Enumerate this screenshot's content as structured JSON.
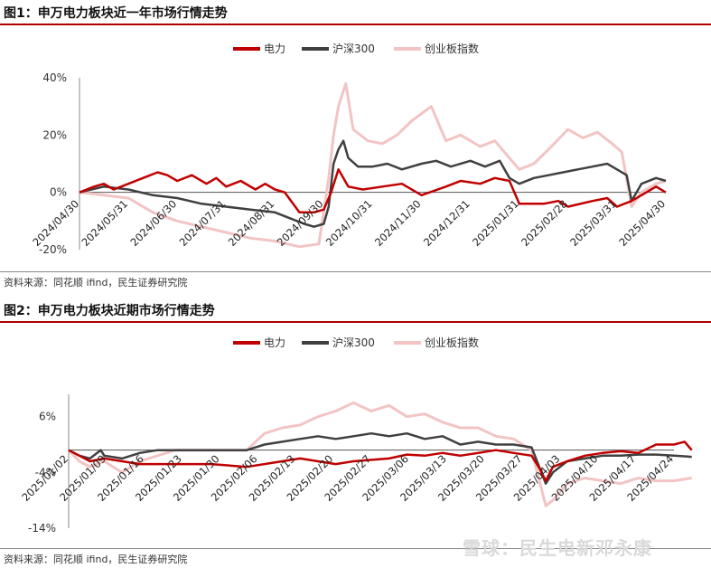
{
  "figures": [
    {
      "title": "图1：申万电力板块近一年市场行情走势",
      "source": "资料来源：同花顺 ifind，民生证券研究院"
    },
    {
      "title": "图2：申万电力板块近期市场行情走势",
      "source": "资料来源：同花顺 ifind，民生证券研究院"
    }
  ],
  "watermark": "雪球：民生电新邓永康",
  "colors": {
    "power": "#c00000",
    "hs300": "#404040",
    "cyb": "#f2c4c4"
  },
  "chart_data": [
    {
      "type": "line",
      "title": "图1：申万电力板块近一年市场行情走势",
      "xlabel": "",
      "ylabel": "",
      "ylim": [
        -20,
        40
      ],
      "y_ticks": [
        -20,
        0,
        20,
        40
      ],
      "y_tick_labels": [
        "-20%",
        "0%",
        "20%",
        "40%"
      ],
      "x_tick_labels": [
        "2024/04/30",
        "2024/05/31",
        "2024/06/30",
        "2024/07/31",
        "2024/08/31",
        "2024/09/30",
        "2024/10/31",
        "2024/11/30",
        "2024/12/31",
        "2025/01/31",
        "2025/02/28",
        "2025/03/31",
        "2025/04/30"
      ],
      "legend_position": "top",
      "x_min": 0,
      "x_max": 12,
      "series": [
        {
          "name": "电力",
          "color": "#c00000",
          "points": [
            [
              0,
              0
            ],
            [
              0.3,
              2
            ],
            [
              0.5,
              3
            ],
            [
              0.7,
              1
            ],
            [
              1,
              3
            ],
            [
              1.3,
              5
            ],
            [
              1.6,
              7
            ],
            [
              1.8,
              6
            ],
            [
              2,
              4
            ],
            [
              2.3,
              6
            ],
            [
              2.6,
              3
            ],
            [
              2.8,
              5
            ],
            [
              3,
              2
            ],
            [
              3.3,
              4
            ],
            [
              3.6,
              1
            ],
            [
              3.8,
              3
            ],
            [
              4,
              1
            ],
            [
              4.2,
              0
            ],
            [
              4.5,
              -7
            ],
            [
              4.8,
              -7
            ],
            [
              5,
              -6
            ],
            [
              5.15,
              0
            ],
            [
              5.3,
              8
            ],
            [
              5.5,
              2
            ],
            [
              5.8,
              1
            ],
            [
              6.2,
              2
            ],
            [
              6.6,
              3
            ],
            [
              7,
              -1
            ],
            [
              7.5,
              2
            ],
            [
              7.8,
              4
            ],
            [
              8.2,
              3
            ],
            [
              8.5,
              5
            ],
            [
              8.8,
              4
            ],
            [
              9,
              -4
            ],
            [
              9.5,
              -4
            ],
            [
              9.8,
              -3
            ],
            [
              10,
              -5
            ],
            [
              10.5,
              -3
            ],
            [
              10.8,
              -2
            ],
            [
              11,
              -5
            ],
            [
              11.3,
              -3
            ],
            [
              11.6,
              0
            ],
            [
              11.8,
              2
            ],
            [
              12,
              0
            ]
          ]
        },
        {
          "name": "沪深300",
          "color": "#404040",
          "points": [
            [
              0,
              0
            ],
            [
              0.5,
              2
            ],
            [
              1,
              1
            ],
            [
              1.5,
              -1
            ],
            [
              2,
              -2
            ],
            [
              2.5,
              -4
            ],
            [
              3,
              -5
            ],
            [
              3.5,
              -6
            ],
            [
              4,
              -7
            ],
            [
              4.3,
              -9
            ],
            [
              4.6,
              -11
            ],
            [
              4.8,
              -12
            ],
            [
              5,
              -11
            ],
            [
              5.1,
              -5
            ],
            [
              5.2,
              10
            ],
            [
              5.3,
              15
            ],
            [
              5.4,
              18
            ],
            [
              5.5,
              12
            ],
            [
              5.7,
              9
            ],
            [
              6,
              9
            ],
            [
              6.3,
              10
            ],
            [
              6.6,
              8
            ],
            [
              7,
              10
            ],
            [
              7.3,
              11
            ],
            [
              7.6,
              9
            ],
            [
              8,
              11
            ],
            [
              8.3,
              9
            ],
            [
              8.6,
              11
            ],
            [
              8.8,
              5
            ],
            [
              9,
              3
            ],
            [
              9.3,
              5
            ],
            [
              9.6,
              6
            ],
            [
              9.9,
              7
            ],
            [
              10.2,
              8
            ],
            [
              10.5,
              9
            ],
            [
              10.8,
              10
            ],
            [
              11,
              8
            ],
            [
              11.2,
              6
            ],
            [
              11.3,
              -3
            ],
            [
              11.5,
              3
            ],
            [
              11.8,
              5
            ],
            [
              12,
              4
            ]
          ]
        },
        {
          "name": "创业板指数",
          "color": "#f2c4c4",
          "points": [
            [
              0,
              0
            ],
            [
              0.5,
              -1
            ],
            [
              1,
              -2
            ],
            [
              1.5,
              -7
            ],
            [
              2,
              -10
            ],
            [
              2.5,
              -12
            ],
            [
              3,
              -14
            ],
            [
              3.5,
              -16
            ],
            [
              4,
              -17
            ],
            [
              4.5,
              -19
            ],
            [
              4.9,
              -18
            ],
            [
              5.1,
              5
            ],
            [
              5.2,
              20
            ],
            [
              5.3,
              30
            ],
            [
              5.45,
              38
            ],
            [
              5.6,
              22
            ],
            [
              5.9,
              18
            ],
            [
              6.2,
              17
            ],
            [
              6.5,
              20
            ],
            [
              6.8,
              25
            ],
            [
              7.2,
              30
            ],
            [
              7.5,
              18
            ],
            [
              7.8,
              20
            ],
            [
              8.2,
              16
            ],
            [
              8.5,
              18
            ],
            [
              8.8,
              12
            ],
            [
              9,
              8
            ],
            [
              9.3,
              10
            ],
            [
              9.6,
              15
            ],
            [
              10,
              22
            ],
            [
              10.3,
              19
            ],
            [
              10.6,
              21
            ],
            [
              10.9,
              17
            ],
            [
              11.1,
              14
            ],
            [
              11.3,
              -5
            ],
            [
              11.5,
              0
            ],
            [
              11.8,
              3
            ],
            [
              12,
              4
            ]
          ]
        }
      ]
    },
    {
      "type": "line",
      "title": "图2：申万电力板块近期市场行情走势",
      "xlabel": "",
      "ylabel": "",
      "ylim": [
        -14,
        10
      ],
      "y_ticks": [
        -14,
        -4,
        6
      ],
      "y_tick_labels": [
        "-14%",
        "-4%",
        "6%"
      ],
      "x_tick_labels": [
        "2025/01/02",
        "2025/01/09",
        "2025/01/16",
        "2025/01/23",
        "2025/01/30",
        "2025/02/06",
        "2025/02/13",
        "2025/02/20",
        "2025/02/27",
        "2025/03/06",
        "2025/03/13",
        "2025/03/20",
        "2025/03/27",
        "2025/04/03",
        "2025/04/10",
        "2025/04/17",
        "2025/04/24"
      ],
      "legend_position": "top",
      "x_min": 0,
      "x_max": 17,
      "series": [
        {
          "name": "电力",
          "color": "#c00000",
          "points": [
            [
              0,
              0
            ],
            [
              0.3,
              -1
            ],
            [
              0.6,
              -2
            ],
            [
              1,
              -1.5
            ],
            [
              1.5,
              -2
            ],
            [
              2,
              -2.5
            ],
            [
              3,
              -2.5
            ],
            [
              4,
              -2.5
            ],
            [
              5,
              -3
            ],
            [
              6,
              -2
            ],
            [
              6.5,
              -1.5
            ],
            [
              7,
              -2
            ],
            [
              7.5,
              -2.5
            ],
            [
              8,
              -2
            ],
            [
              9,
              -1.5
            ],
            [
              9.5,
              -0.8
            ],
            [
              10,
              -1
            ],
            [
              10.5,
              -0.5
            ],
            [
              11,
              -1
            ],
            [
              11.5,
              -0.5
            ],
            [
              12,
              0
            ],
            [
              12.5,
              -0.5
            ],
            [
              13,
              -1
            ],
            [
              13.2,
              -3
            ],
            [
              13.4,
              -5.5
            ],
            [
              13.6,
              -3
            ],
            [
              14,
              -2
            ],
            [
              14.5,
              -1
            ],
            [
              15,
              -0.5
            ],
            [
              15.5,
              -0.2
            ],
            [
              16,
              -0.5
            ],
            [
              16.5,
              1
            ],
            [
              17,
              1
            ],
            [
              17.3,
              1.5
            ],
            [
              17.5,
              0
            ]
          ]
        },
        {
          "name": "沪深300",
          "color": "#404040",
          "points": [
            [
              0,
              0
            ],
            [
              0.3,
              -1
            ],
            [
              0.6,
              -1.5
            ],
            [
              0.9,
              0
            ],
            [
              1,
              -1
            ],
            [
              1.5,
              -1.5
            ],
            [
              2,
              -0.5
            ],
            [
              2.5,
              0
            ],
            [
              3,
              0
            ],
            [
              4,
              0
            ],
            [
              5,
              0
            ],
            [
              5.5,
              1
            ],
            [
              6,
              1.5
            ],
            [
              6.5,
              2
            ],
            [
              7,
              2.5
            ],
            [
              7.5,
              2
            ],
            [
              8,
              2.5
            ],
            [
              8.5,
              3
            ],
            [
              9,
              2.5
            ],
            [
              9.5,
              3
            ],
            [
              10,
              2
            ],
            [
              10.5,
              2.5
            ],
            [
              11,
              1
            ],
            [
              11.5,
              1.5
            ],
            [
              12,
              1
            ],
            [
              12.5,
              1
            ],
            [
              13,
              0.5
            ],
            [
              13.4,
              -6
            ],
            [
              13.6,
              -4
            ],
            [
              14,
              -2
            ],
            [
              14.5,
              -1.5
            ],
            [
              15,
              -1
            ],
            [
              15.5,
              -1
            ],
            [
              16,
              -0.8
            ],
            [
              16.5,
              -0.8
            ],
            [
              17,
              -1
            ],
            [
              17.5,
              -1.2
            ]
          ]
        },
        {
          "name": "创业板指数",
          "color": "#f2c4c4",
          "points": [
            [
              0,
              0
            ],
            [
              0.3,
              -2
            ],
            [
              0.6,
              -3
            ],
            [
              1,
              -2
            ],
            [
              1.5,
              -4
            ],
            [
              2,
              -2
            ],
            [
              2.5,
              -1
            ],
            [
              3,
              0
            ],
            [
              4,
              0
            ],
            [
              5,
              0
            ],
            [
              5.5,
              3
            ],
            [
              6,
              4
            ],
            [
              6.5,
              4.5
            ],
            [
              7,
              6
            ],
            [
              7.5,
              7
            ],
            [
              8,
              8.5
            ],
            [
              8.5,
              7
            ],
            [
              9,
              8
            ],
            [
              9.5,
              6
            ],
            [
              10,
              6.5
            ],
            [
              10.5,
              5
            ],
            [
              11,
              4
            ],
            [
              11.5,
              4
            ],
            [
              12,
              2.5
            ],
            [
              12.5,
              2
            ],
            [
              13,
              0
            ],
            [
              13.4,
              -10
            ],
            [
              13.6,
              -9
            ],
            [
              14,
              -6
            ],
            [
              14.5,
              -5
            ],
            [
              15,
              -5.5
            ],
            [
              15.5,
              -6
            ],
            [
              16,
              -5
            ],
            [
              16.5,
              -5.5
            ],
            [
              17,
              -5.5
            ],
            [
              17.5,
              -5
            ]
          ]
        }
      ]
    }
  ]
}
